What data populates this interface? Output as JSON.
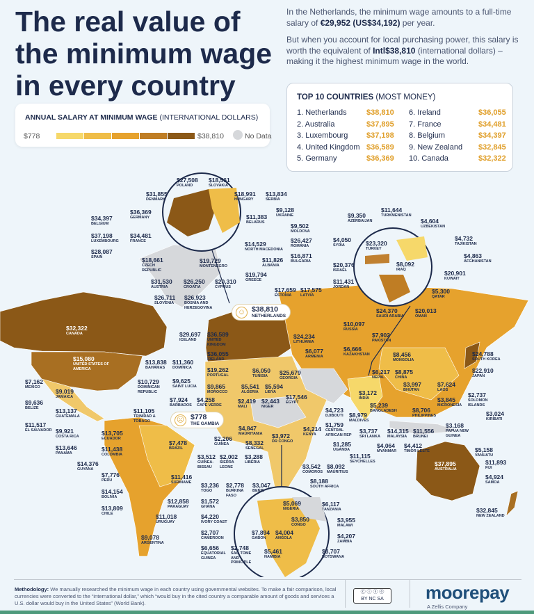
{
  "header": {
    "title": "The real value of the minimum wage in every country",
    "intro1_pre": "In the Netherlands, the minimum wage amounts to a full-time salary of ",
    "intro1_b1": "€29,952",
    "intro1_b2": " (US$34,192)",
    "intro1_post": " per year.",
    "intro2_pre": "But when you account for local purchasing power, this salary is worth the equivalent of ",
    "intro2_b": "Intl$38,810",
    "intro2_post": " (international dollars) – making it the highest minimum wage in the world."
  },
  "legend": {
    "title_b": "ANNUAL SALARY AT MINIMUM WAGE",
    "title_rest": " (INTERNATIONAL DOLLARS)",
    "min": "$778",
    "max": "$38,810",
    "no_data": "No Data",
    "colors": [
      "#f6d86a",
      "#efbd48",
      "#e6a22d",
      "#bf7d24",
      "#8b5817"
    ],
    "no_data_color": "#d6d8db"
  },
  "top10": {
    "title_b": "TOP 10 COUNTRIES",
    "title_rest": " (MOST MONEY)",
    "rows": [
      {
        "rank": "1.",
        "name": "Netherlands",
        "value": "$38,810"
      },
      {
        "rank": "2.",
        "name": "Australia",
        "value": "$37,895"
      },
      {
        "rank": "3.",
        "name": "Luxembourg",
        "value": "$37,198"
      },
      {
        "rank": "4.",
        "name": "United Kingdom",
        "value": "$36,589"
      },
      {
        "rank": "5.",
        "name": "Germany",
        "value": "$36,369"
      },
      {
        "rank": "6.",
        "name": "Ireland",
        "value": "$36,055"
      },
      {
        "rank": "7.",
        "name": "France",
        "value": "$34,481"
      },
      {
        "rank": "8.",
        "name": "Belgium",
        "value": "$34,397"
      },
      {
        "rank": "9.",
        "name": "New Zealand",
        "value": "$32,845"
      },
      {
        "rank": "10.",
        "name": "Canada",
        "value": "$32,322"
      }
    ]
  },
  "highlights": {
    "max": {
      "value": "$38,810",
      "name": "NETHERLANDS"
    },
    "min": {
      "value": "$778",
      "name": "THE GAMBIA"
    }
  },
  "labels": [
    [
      "$27,508",
      "POLAND"
    ],
    [
      "$18,561",
      "SLOVAKIA"
    ],
    [
      "$31,855",
      "DENMARK"
    ],
    [
      "$18,991",
      "HUNGARY"
    ],
    [
      "$13,834",
      "SERBIA"
    ],
    [
      "$36,369",
      "GERMANY"
    ],
    [
      "$11,383",
      "BELARUS"
    ],
    [
      "$9,128",
      "UKRAINE"
    ],
    [
      "$34,397",
      "BELGIUM"
    ],
    [
      "$9,502",
      "MOLDOVA"
    ],
    [
      "$37,198",
      "LUXEMBOURG"
    ],
    [
      "$34,481",
      "FRANCE"
    ],
    [
      "$26,427",
      "ROMANIA"
    ],
    [
      "$14,529",
      "NORTH MACEDONIA"
    ],
    [
      "$28,087",
      "SPAIN"
    ],
    [
      "$11,826",
      "ALBANIA"
    ],
    [
      "$16,871",
      "BULGARIA"
    ],
    [
      "$18,661",
      "CZECH REPUBLIC"
    ],
    [
      "$19,729",
      "MONTENEGRO"
    ],
    [
      "$19,794",
      "GREECE"
    ],
    [
      "$31,530",
      "AUSTRIA"
    ],
    [
      "$26,250",
      "CROATIA"
    ],
    [
      "$20,310",
      "CYPRUS"
    ],
    [
      "$26,711",
      "SLOVENIA"
    ],
    [
      "$26,923",
      "BOSNIA AND HERZEGOVINA"
    ],
    [
      "$11,644",
      "TURKMENISTAN"
    ],
    [
      "$9,350",
      "AZERBAIJAN"
    ],
    [
      "$4,604",
      "UZBEKISTAN"
    ],
    [
      "$4,050",
      "SYRIA"
    ],
    [
      "$23,320",
      "TURKEY"
    ],
    [
      "$4,732",
      "TAJIKISTAN"
    ],
    [
      "$4,863",
      "AFGHANISTAN"
    ],
    [
      "$8,092",
      "IRAQ"
    ],
    [
      "$20,376",
      "ISRAEL"
    ],
    [
      "$20,901",
      "KUWAIT"
    ],
    [
      "$11,431",
      "JORDAN"
    ],
    [
      "$5,300",
      "QATAR"
    ],
    [
      "$17,659",
      "ESTONIA"
    ],
    [
      "$17,575",
      "LATVIA"
    ],
    [
      "$24,370",
      "SAUDI ARABIA"
    ],
    [
      "$20,013",
      "OMAN"
    ],
    [
      "$10,097",
      "RUSSIA"
    ],
    [
      "$24,234",
      "LITHUANIA"
    ],
    [
      "$7,902",
      "PAKISTAN"
    ],
    [
      "$6,077",
      "ARMENIA"
    ],
    [
      "$6,666",
      "KAZAKHSTAN"
    ],
    [
      "$8,456",
      "MONGOLIA"
    ],
    [
      "$24,788",
      "SOUTH KOREA"
    ],
    [
      "$25,679",
      "GEORGIA"
    ],
    [
      "$6,217",
      "NEPAL"
    ],
    [
      "$8,875",
      "CHINA"
    ],
    [
      "$22,910",
      "JAPAN"
    ],
    [
      "$3,997",
      "BHUTAN"
    ],
    [
      "$7,624",
      "LAOS"
    ],
    [
      "$3,172",
      "INDIA"
    ],
    [
      "$17,546",
      "EGYPT"
    ],
    [
      "$3,845",
      "MICRONESIA"
    ],
    [
      "$2,737",
      "SOLOMON ISLANDS"
    ],
    [
      "$5,239",
      "BANGLADESH"
    ],
    [
      "$8,706",
      "PHILIPPINES"
    ],
    [
      "$3,024",
      "KIRIBATI"
    ],
    [
      "$4,723",
      "DJIBOUTI"
    ],
    [
      "$8,979",
      "MALDIVES"
    ],
    [
      "$1,759",
      "CENTRAL AFRICAN REP"
    ],
    [
      "$4,214",
      "KENYA"
    ],
    [
      "$3,737",
      "SRI LANKA"
    ],
    [
      "$14,315",
      "MALAYSIA"
    ],
    [
      "$11,556",
      "BRUNEI"
    ],
    [
      "$3,168",
      "PAPUA NEW GUINEA"
    ],
    [
      "$3,972",
      "DR CONGO"
    ],
    [
      "$1,285",
      "UGANDA"
    ],
    [
      "$4,064",
      "MYANMAR"
    ],
    [
      "$4,412",
      "TIMOR LESTE"
    ],
    [
      "$5,158",
      "VANUATU"
    ],
    [
      "$11,115",
      "SEYCHELLES"
    ],
    [
      "$11,893",
      "FIJI"
    ],
    [
      "$3,542",
      "COMOROS"
    ],
    [
      "$8,092",
      "MAURITIUS"
    ],
    [
      "$8,188",
      "SOUTH AFRICA"
    ],
    [
      "$4,924",
      "SAMOA"
    ],
    [
      "$32,845",
      "NEW ZEALAND"
    ],
    [
      "$37,895",
      "AUSTRALIA"
    ],
    [
      "$6,050",
      "TUNISIA"
    ],
    [
      "$5,541",
      "ALGERIA"
    ],
    [
      "$5,594",
      "LIBYA"
    ],
    [
      "$9,865",
      "MOROCCO"
    ],
    [
      "$4,258",
      "CAPE VERDE"
    ],
    [
      "$2,419",
      "MALI"
    ],
    [
      "$2,443",
      "NIGER"
    ],
    [
      "$4,847",
      "MAURITANIA"
    ],
    [
      "$8,332",
      "SENEGAL"
    ],
    [
      "$2,206",
      "GUINEA"
    ],
    [
      "$3,512",
      "GUINEA-BISSAU"
    ],
    [
      "$2,002",
      "SIERRA LEONE"
    ],
    [
      "$3,288",
      "LIBERIA"
    ],
    [
      "$32,322",
      "CANADA"
    ],
    [
      "$29,697",
      "ICELAND"
    ],
    [
      "$36,589",
      "UNITED KINGDOM"
    ],
    [
      "$36,055",
      "IRELAND"
    ],
    [
      "$15,080",
      "UNITED STATES OF AMERICA"
    ],
    [
      "$13,838",
      "BAHAMAS"
    ],
    [
      "$11,360",
      "DOMINICA"
    ],
    [
      "$19,262",
      "PORTUGAL"
    ],
    [
      "$7,162",
      "MEXICO"
    ],
    [
      "$10,729",
      "DOMINICAN REPUBLIC"
    ],
    [
      "$9,625",
      "SAINT LUCIA"
    ],
    [
      "$9,019",
      "JAMAICA"
    ],
    [
      "$9,636",
      "BELIZE"
    ],
    [
      "$7,924",
      "BARBADOS"
    ],
    [
      "$13,137",
      "GUATEMALA"
    ],
    [
      "$11,105",
      "TRINIDAD & TOBAGO"
    ],
    [
      "$11,517",
      "EL SALVADOR"
    ],
    [
      "$9,921",
      "COSTA RICA"
    ],
    [
      "$13,705",
      "ECUADOR"
    ],
    [
      "$13,646",
      "PANAMA"
    ],
    [
      "$11,438",
      "COLOMBIA"
    ],
    [
      "$7,478",
      "BRAZIL"
    ],
    [
      "$14,376",
      "GUYANA"
    ],
    [
      "$7,776",
      "PERU"
    ],
    [
      "$11,416",
      "SURINAME"
    ],
    [
      "$14,154",
      "BOLIVIA"
    ],
    [
      "$12,858",
      "PARAGUAY"
    ],
    [
      "$13,809",
      "CHILE"
    ],
    [
      "$11,018",
      "URUGUAY"
    ],
    [
      "$9,078",
      "ARGENTINA"
    ],
    [
      "$3,236",
      "TOGO"
    ],
    [
      "$2,778",
      "BURKINA FASO"
    ],
    [
      "$3,047",
      "BENIN"
    ],
    [
      "$1,572",
      "GHANA"
    ],
    [
      "$5,069",
      "NIGERIA"
    ],
    [
      "$6,117",
      "TANZANIA"
    ],
    [
      "$4,220",
      "IVORY COAST"
    ],
    [
      "$3,850",
      "CONGO"
    ],
    [
      "$3,955",
      "MALAWI"
    ],
    [
      "$2,707",
      "CAMEROON"
    ],
    [
      "$7,894",
      "GABON"
    ],
    [
      "$4,004",
      "ANGOLA"
    ],
    [
      "$4,207",
      "ZAMBIA"
    ],
    [
      "$6,656",
      "EQUATORIAL GUINEA"
    ],
    [
      "$2,748",
      "SAO TOME AND PRINCIPLE"
    ],
    [
      "$5,461",
      "NAMIBIA"
    ],
    [
      "$3,707",
      "BOTSWANA"
    ]
  ],
  "footer": {
    "methodology_b": "Methodology:",
    "methodology": " We manually researched the minimum wage in each country using governmental websites. To make a fair comparison, local currencies were converted to the “international dollar,” which “would buy in the cited country a comparable amount of goods and services a U.S. dollar would buy in the United States” (World Bank).",
    "license": "BY NC SA",
    "brand": "moorepay",
    "brand_sub": "A Zellis Company"
  }
}
